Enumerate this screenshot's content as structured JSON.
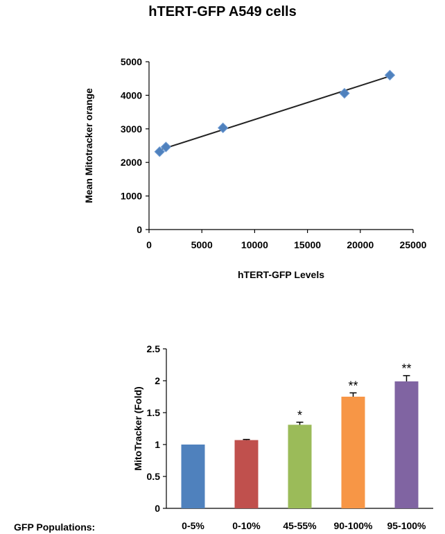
{
  "title": "hTERT-GFP A549 cells",
  "chart_data": [
    {
      "type": "scatter",
      "xlabel": "hTERT-GFP Levels",
      "ylabel": "Mean Mitotracker orange",
      "xlim": [
        0,
        25000
      ],
      "ylim": [
        0,
        5000
      ],
      "xticks": [
        "0",
        "5000",
        "10000",
        "15000",
        "20000",
        "25000"
      ],
      "yticks": [
        "0",
        "1000",
        "2000",
        "3000",
        "4000",
        "5000"
      ],
      "marker_color": "#4F81BD",
      "points": [
        {
          "x": 1000,
          "y": 2320
        },
        {
          "x": 1600,
          "y": 2460
        },
        {
          "x": 7000,
          "y": 3030
        },
        {
          "x": 18500,
          "y": 4060
        },
        {
          "x": 22800,
          "y": 4600
        }
      ],
      "trendline": {
        "x": [
          1000,
          22800
        ],
        "y": [
          2370,
          4570
        ]
      },
      "grid": false
    },
    {
      "type": "bar",
      "ylabel": "MitoTracker (Fold)",
      "xlabel_prefix": "GFP Populations:",
      "ylim": [
        0,
        2.5
      ],
      "yticks": [
        "0",
        "0.5",
        "1",
        "1.5",
        "2",
        "2.5"
      ],
      "categories": [
        "0-5%",
        "0-10%",
        "45-55%",
        "90-100%",
        "95-100%"
      ],
      "values": [
        1.0,
        1.07,
        1.31,
        1.75,
        1.99
      ],
      "errors": [
        0,
        0.01,
        0.04,
        0.06,
        0.09
      ],
      "colors": [
        "#4F81BD",
        "#C0504D",
        "#9BBB59",
        "#F79646",
        "#8064A2"
      ],
      "significance": [
        "",
        "",
        "*",
        "**",
        "**"
      ],
      "grid": false
    }
  ]
}
